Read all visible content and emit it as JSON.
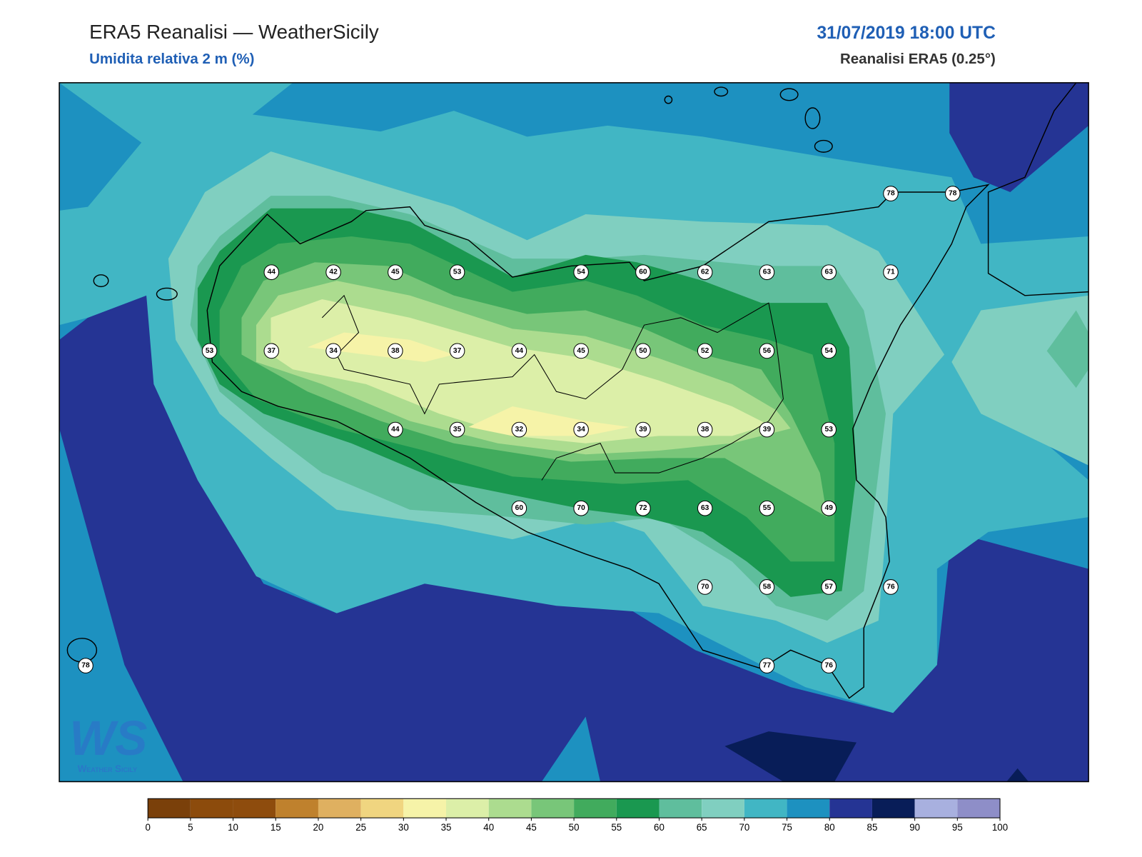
{
  "header": {
    "title": "ERA5 Reanalisi — WeatherSicily",
    "subtitle": "Umidita relativa 2 m (%)",
    "datetime": "31/07/2019 18:00 UTC",
    "source": "Reanalisi ERA5 (0.25°)"
  },
  "logo": {
    "mark": "WS",
    "text": "Weather Sicily"
  },
  "stations": [
    78,
    78,
    44,
    42,
    45,
    53,
    54,
    60,
    62,
    63,
    63,
    71,
    53,
    37,
    34,
    38,
    37,
    44,
    45,
    50,
    52,
    56,
    54,
    44,
    35,
    32,
    34,
    39,
    38,
    39,
    53,
    60,
    70,
    72,
    63,
    55,
    49,
    70,
    58,
    57,
    76,
    78,
    77,
    76
  ],
  "colorbar": {
    "ticks": [
      0,
      5,
      10,
      15,
      20,
      25,
      30,
      35,
      40,
      45,
      50,
      55,
      60,
      65,
      70,
      75,
      80,
      85,
      90,
      95,
      100
    ],
    "colors": [
      "#7a400a",
      "#8c4b0c",
      "#8e4c0d",
      "#bf812d",
      "#dfb060",
      "#f0d580",
      "#f6f3a8",
      "#dcefa8",
      "#acdc8f",
      "#78c679",
      "#41ab5d",
      "#1a9850",
      "#5fbe9d",
      "#80cfc0",
      "#41b6c4",
      "#1d91c0",
      "#253494",
      "#081d58",
      "#a8b0df",
      "#8e8ec8"
    ]
  }
}
